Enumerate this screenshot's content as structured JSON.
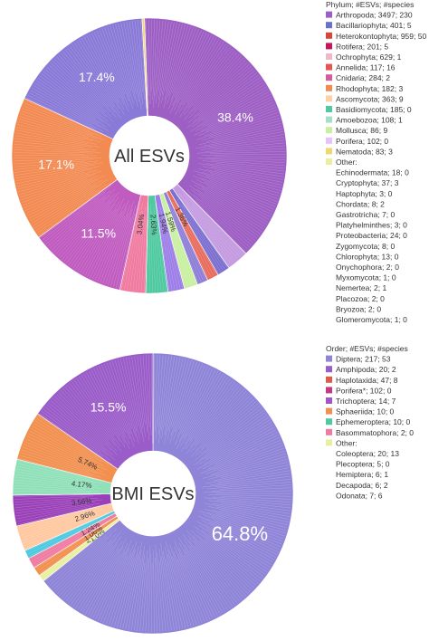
{
  "chart_data": [
    {
      "type": "pie",
      "title": "All ESVs",
      "legend_title": "Phylum; #ESVs; #species",
      "legend_placement": "right",
      "series": [
        {
          "name": "Arthropoda; 3497; 230",
          "value": 38.4,
          "color": "#9d5fc4",
          "label": "38.4%"
        },
        {
          "name": "Bacillariophyta; 401; 5",
          "value": 4.4,
          "color": "#6873c8",
          "label": ""
        },
        {
          "name": "Heterokontophyta; 959; 50",
          "value": 0,
          "color": "#d6473a",
          "label": ""
        },
        {
          "name": "Rotifera; 201; 5",
          "value": 0,
          "color": "#c2185b",
          "label": ""
        },
        {
          "name": "Ochrophyta; 629; 1",
          "value": 0,
          "color": "#f0b7c8",
          "label": ""
        },
        {
          "name": "Annelida; 117; 16",
          "value": 0,
          "color": "#e8544e",
          "label": ""
        },
        {
          "name": "Cnidaria; 284; 2",
          "value": 0,
          "color": "#d65a9c",
          "label": ""
        },
        {
          "name": "Rhodophyta; 182; 3",
          "value": 0,
          "color": "#f28a52",
          "label": ""
        },
        {
          "name": "Ascomycota; 363; 9",
          "value": 0,
          "color": "#ffd0a8",
          "label": ""
        },
        {
          "name": "Basidiomycota; 185; 0",
          "value": 0,
          "color": "#4ec9a0",
          "label": ""
        },
        {
          "name": "Amoebozoa; 108; 1",
          "value": 0,
          "color": "#a4e0c8",
          "label": ""
        },
        {
          "name": "Mollusca; 86; 9",
          "value": 0,
          "color": "#c8f0a0",
          "label": ""
        },
        {
          "name": "Porifera; 102; 0",
          "value": 0,
          "color": "#e8c0ff",
          "label": ""
        },
        {
          "name": "Nematoda; 83; 3",
          "value": 0,
          "color": "#f0d870",
          "label": ""
        }
      ],
      "other_title": "Other:",
      "other_entries": [
        "Echinodermata; 18; 0",
        "Cryptophyta; 37; 3",
        "Haptophyta; 3; 0",
        "Chordata; 8; 2",
        "Gastrotricha; 7; 0",
        "Platyhelminthes; 3; 0",
        "Proteobacteria; 24; 0",
        "Zygomycota; 8; 0",
        "Chlorophyta; 13; 0",
        "Onychophora; 2; 0",
        "Myxomycota; 1; 0",
        "Nemertea; 2; 1",
        "Placozoa; 2; 0",
        "Bryozoa; 2; 0",
        "Glomeromycota; 1; 0"
      ],
      "slices": [
        {
          "value": 38.4,
          "color": "#9d5fc4",
          "label": "38.4%"
        },
        {
          "value": 2.6,
          "color": "#c49be0",
          "label": ""
        },
        {
          "value": 1.5,
          "color": "#7b6fd0",
          "label": ""
        },
        {
          "value": 1.36,
          "color": "#e96d5e",
          "label": "1.36%"
        },
        {
          "value": 1.3,
          "color": "#8e7ed8",
          "label": ""
        },
        {
          "value": 1.59,
          "color": "#c8f0a0",
          "label": "1.59%"
        },
        {
          "value": 1.94,
          "color": "#9d7ee8",
          "label": "1.94%"
        },
        {
          "value": 2.63,
          "color": "#4ec9a0",
          "label": "2.63%"
        },
        {
          "value": 3.04,
          "color": "#f07aa0",
          "label": "3.04%"
        },
        {
          "value": 11.5,
          "color": "#c05cc0",
          "label": "11.5%"
        },
        {
          "value": 17.1,
          "color": "#f28a52",
          "label": "17.1%"
        },
        {
          "value": 17.4,
          "color": "#8a7ad8",
          "label": "17.4%"
        },
        {
          "value": 0.3,
          "color": "#f0d870",
          "label": ""
        }
      ]
    },
    {
      "type": "pie",
      "title": "BMI ESVs",
      "legend_title": "Order; #ESVs; #species",
      "legend_placement": "right",
      "series": [
        {
          "name": "Diptera; 217; 53",
          "color": "#8f85d8"
        },
        {
          "name": "Amphipoda; 20; 2",
          "color": "#9a5cc8"
        },
        {
          "name": "Haplotaxida; 47; 8",
          "color": "#e05a4a"
        },
        {
          "name": "Porifera*; 102; 0",
          "color": "#c83880"
        },
        {
          "name": "Trichoptera; 14; 7",
          "color": "#a055c8"
        },
        {
          "name": "Sphaeriida; 10; 0",
          "color": "#f29050"
        },
        {
          "name": "Ephemeroptera; 10; 0",
          "color": "#4ec9a0"
        },
        {
          "name": "Basommatophora; 2; 0",
          "color": "#f07aa0"
        }
      ],
      "other_title": "Other:",
      "other_entries": [
        "Coleoptera; 20; 13",
        "Plecoptera; 5; 0",
        "Hemiptera; 6; 1",
        "Decapoda; 6; 2",
        "Odonata; 7; 6"
      ],
      "slices": [
        {
          "value": 64.8,
          "color": "#8f85d8",
          "label": "64.8%"
        },
        {
          "value": 0.8,
          "color": "#e8f0a0",
          "label": "<1.0%"
        },
        {
          "value": 1.06,
          "color": "#f29050",
          "label": "1.06%"
        },
        {
          "value": 1.24,
          "color": "#f07aa0",
          "label": "1.24%"
        },
        {
          "value": 1.0,
          "color": "#4ec9e0",
          "label": ""
        },
        {
          "value": 2.96,
          "color": "#ffc8a0",
          "label": "2.96%"
        },
        {
          "value": 3.56,
          "color": "#9a40b8",
          "label": "3.56%"
        },
        {
          "value": 4.17,
          "color": "#8fe0b8",
          "label": "4.17%"
        },
        {
          "value": 5.74,
          "color": "#f29050",
          "label": "5.74%"
        },
        {
          "value": 15.5,
          "color": "#9a5cc8",
          "label": "15.5%"
        }
      ]
    }
  ]
}
